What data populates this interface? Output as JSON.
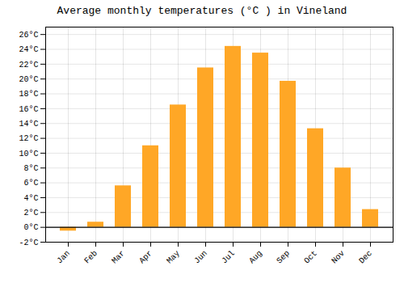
{
  "chart_data": {
    "type": "bar",
    "title": "Average monthly temperatures (°C ) in Vineland",
    "categories": [
      "Jan",
      "Feb",
      "Mar",
      "Apr",
      "May",
      "Jun",
      "Jul",
      "Aug",
      "Sep",
      "Oct",
      "Nov",
      "Dec"
    ],
    "values": [
      -0.5,
      0.7,
      5.6,
      11.0,
      16.5,
      21.5,
      24.4,
      23.5,
      19.7,
      13.3,
      8.0,
      2.4
    ],
    "color": "#FFA726",
    "ylim": [
      -2,
      27
    ],
    "yticks": [
      {
        "value": -2,
        "label": "-2°C"
      },
      {
        "value": 0,
        "label": "0°C"
      },
      {
        "value": 2,
        "label": "2°C"
      },
      {
        "value": 4,
        "label": "4°C"
      },
      {
        "value": 6,
        "label": "6°C"
      },
      {
        "value": 8,
        "label": "8°C"
      },
      {
        "value": 10,
        "label": "10°C"
      },
      {
        "value": 12,
        "label": "12°C"
      },
      {
        "value": 14,
        "label": "14°C"
      },
      {
        "value": 16,
        "label": "16°C"
      },
      {
        "value": 18,
        "label": "18°C"
      },
      {
        "value": 20,
        "label": "20°C"
      },
      {
        "value": 22,
        "label": "22°C"
      },
      {
        "value": 24,
        "label": "24°C"
      },
      {
        "value": 26,
        "label": "26°C"
      }
    ],
    "grid": true
  }
}
